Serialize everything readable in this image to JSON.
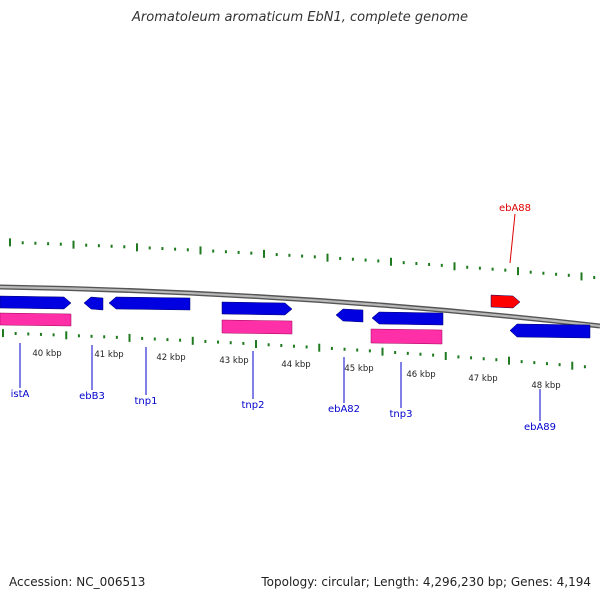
{
  "title": "Aromatoleum aromaticum EbN1, complete genome",
  "footer": {
    "accession": "Accession: NC_006513",
    "summary": "Topology: circular; Length: 4,296,230 bp; Genes: 4,194"
  },
  "colors": {
    "backbone": "#888888",
    "tick": "#1f7a1f",
    "gene_forward": "#0000e0",
    "gene_reverse": "#0000e0",
    "cds": "#ff2fa8",
    "highlight": "#ff0000",
    "label_gene": "#0000cc",
    "label_highlight": "#dd0000"
  },
  "scale": {
    "labels": [
      "40 kbp",
      "41 kbp",
      "42 kbp",
      "43 kbp",
      "44 kbp",
      "45 kbp",
      "46 kbp",
      "47 kbp",
      "48 kbp"
    ]
  },
  "genes": [
    {
      "name": "istA",
      "color": "label_gene"
    },
    {
      "name": "ebB3",
      "color": "label_gene"
    },
    {
      "name": "tnp1",
      "color": "label_gene"
    },
    {
      "name": "tnp2",
      "color": "label_gene"
    },
    {
      "name": "ebA82",
      "color": "label_gene"
    },
    {
      "name": "tnp3",
      "color": "label_gene"
    },
    {
      "name": "ebA89",
      "color": "label_gene"
    },
    {
      "name": "ebA88",
      "color": "label_highlight"
    }
  ]
}
